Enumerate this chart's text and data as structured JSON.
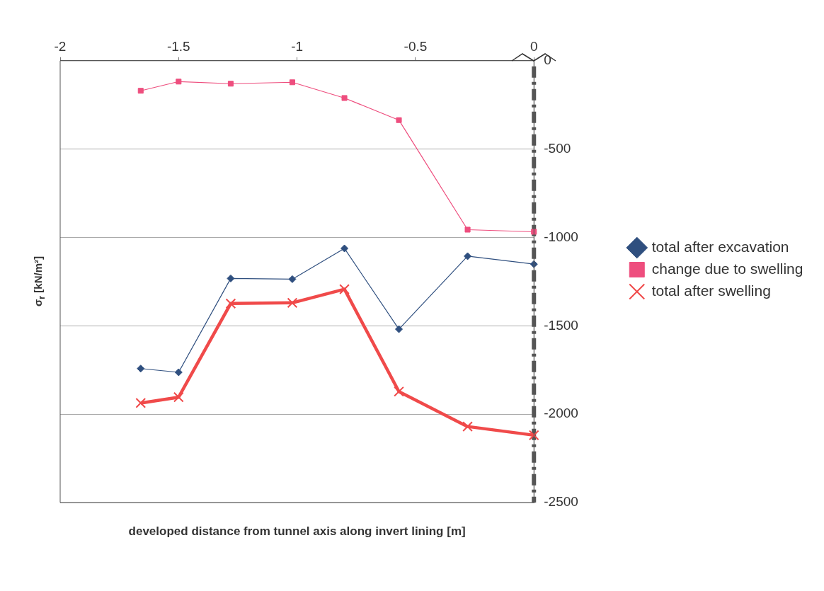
{
  "chart_data": {
    "type": "line",
    "xlabel": "developed distance from tunnel axis along invert lining [m]",
    "ylabel": "σ$_{r}$ [kN/m²]",
    "x": [
      -1.66,
      -1.5,
      -1.28,
      -1.02,
      -0.8,
      -0.57,
      -0.28,
      0
    ],
    "series": [
      {
        "name": "total after excavation",
        "color": "#2f4f7f",
        "marker": "diamond",
        "values": [
          -1742,
          -1763,
          -1232,
          -1236,
          -1062,
          -1519,
          -1106,
          -1151
        ]
      },
      {
        "name": "change due to swelling",
        "color": "#ee4e7e",
        "marker": "square",
        "values": [
          -170,
          -118,
          -130,
          -122,
          -211,
          -336,
          -956,
          -968
        ]
      },
      {
        "name": "total after swelling",
        "color": "#f04a4a",
        "marker": "cross",
        "values": [
          -1937,
          -1904,
          -1374,
          -1370,
          -1293,
          -1872,
          -2070,
          -2119
        ]
      }
    ],
    "xlim": [
      -2,
      0
    ],
    "xticks": [
      -2,
      -1.5,
      -1,
      -0.5,
      0
    ],
    "ylim": [
      -2500,
      0
    ],
    "yticks": [
      0,
      -500,
      -1000,
      -1500,
      -2000,
      -2500
    ],
    "ref_lines": [
      {
        "axis": "x",
        "value": 0,
        "color": "#555555",
        "line_style": "dashed"
      }
    ],
    "grid": "y",
    "legend": "right"
  }
}
